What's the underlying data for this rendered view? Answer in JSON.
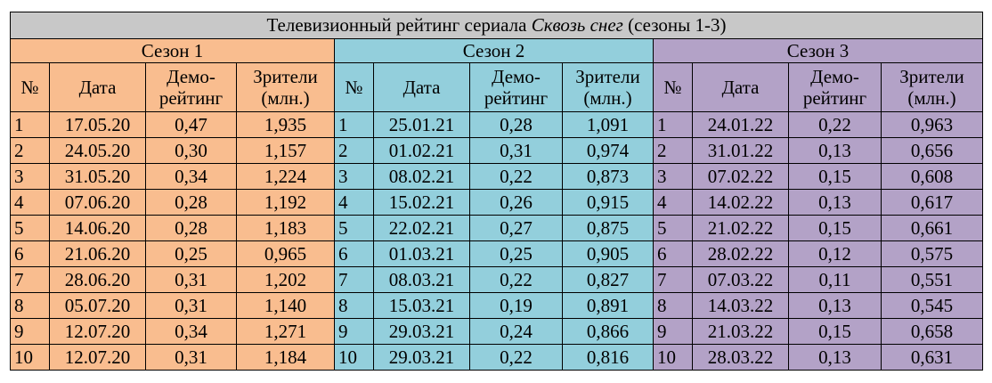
{
  "table": {
    "title": {
      "prefix": "Телевизионный рейтинг сериала ",
      "show": "Сквозь снег",
      "suffix": " (сезоны 1-3)"
    },
    "column_headers": {
      "num": "№",
      "date": "Дата",
      "demo_line1": "Демо-",
      "demo_line2": "рейтинг",
      "viewers_line1": "Зрители",
      "viewers_line2": "(млн.)"
    },
    "colors": {
      "season1": "#f9bd8f",
      "season2": "#93cfdc",
      "season3": "#b3a2c7",
      "title_bg": "#c8c8c8"
    },
    "seasons": [
      {
        "label": "Сезон 1",
        "rows": [
          [
            "1",
            "17.05.20",
            "0,47",
            "1,935"
          ],
          [
            "2",
            "24.05.20",
            "0,30",
            "1,157"
          ],
          [
            "3",
            "31.05.20",
            "0,34",
            "1,224"
          ],
          [
            "4",
            "07.06.20",
            "0,28",
            "1,192"
          ],
          [
            "5",
            "14.06.20",
            "0,28",
            "1,183"
          ],
          [
            "6",
            "21.06.20",
            "0,25",
            "0,965"
          ],
          [
            "7",
            "28.06.20",
            "0,31",
            "1,202"
          ],
          [
            "8",
            "05.07.20",
            "0,31",
            "1,140"
          ],
          [
            "9",
            "12.07.20",
            "0,34",
            "1,271"
          ],
          [
            "10",
            "12.07.20",
            "0,31",
            "1,184"
          ]
        ]
      },
      {
        "label": "Сезон 2",
        "rows": [
          [
            "1",
            "25.01.21",
            "0,28",
            "1,091"
          ],
          [
            "2",
            "01.02.21",
            "0,31",
            "0,974"
          ],
          [
            "3",
            "08.02.21",
            "0,22",
            "0,873"
          ],
          [
            "4",
            "15.02.21",
            "0,26",
            "0,915"
          ],
          [
            "5",
            "22.02.21",
            "0,27",
            "0,875"
          ],
          [
            "6",
            "01.03.21",
            "0,25",
            "0,905"
          ],
          [
            "7",
            "08.03.21",
            "0,22",
            "0,827"
          ],
          [
            "8",
            "15.03.21",
            "0,19",
            "0,891"
          ],
          [
            "9",
            "29.03.21",
            "0,24",
            "0,866"
          ],
          [
            "10",
            "29.03.21",
            "0,22",
            "0,816"
          ]
        ]
      },
      {
        "label": "Сезон 3",
        "rows": [
          [
            "1",
            "24.01.22",
            "0,22",
            "0,963"
          ],
          [
            "2",
            "31.01.22",
            "0,13",
            "0,656"
          ],
          [
            "3",
            "07.02.22",
            "0,15",
            "0,608"
          ],
          [
            "4",
            "14.02.22",
            "0,13",
            "0,617"
          ],
          [
            "5",
            "21.02.22",
            "0,15",
            "0,661"
          ],
          [
            "6",
            "28.02.22",
            "0,12",
            "0,575"
          ],
          [
            "7",
            "07.03.22",
            "0,11",
            "0,551"
          ],
          [
            "8",
            "14.03.22",
            "0,13",
            "0,545"
          ],
          [
            "9",
            "21.03.22",
            "0,15",
            "0,658"
          ],
          [
            "10",
            "28.03.22",
            "0,13",
            "0,631"
          ]
        ]
      }
    ]
  }
}
